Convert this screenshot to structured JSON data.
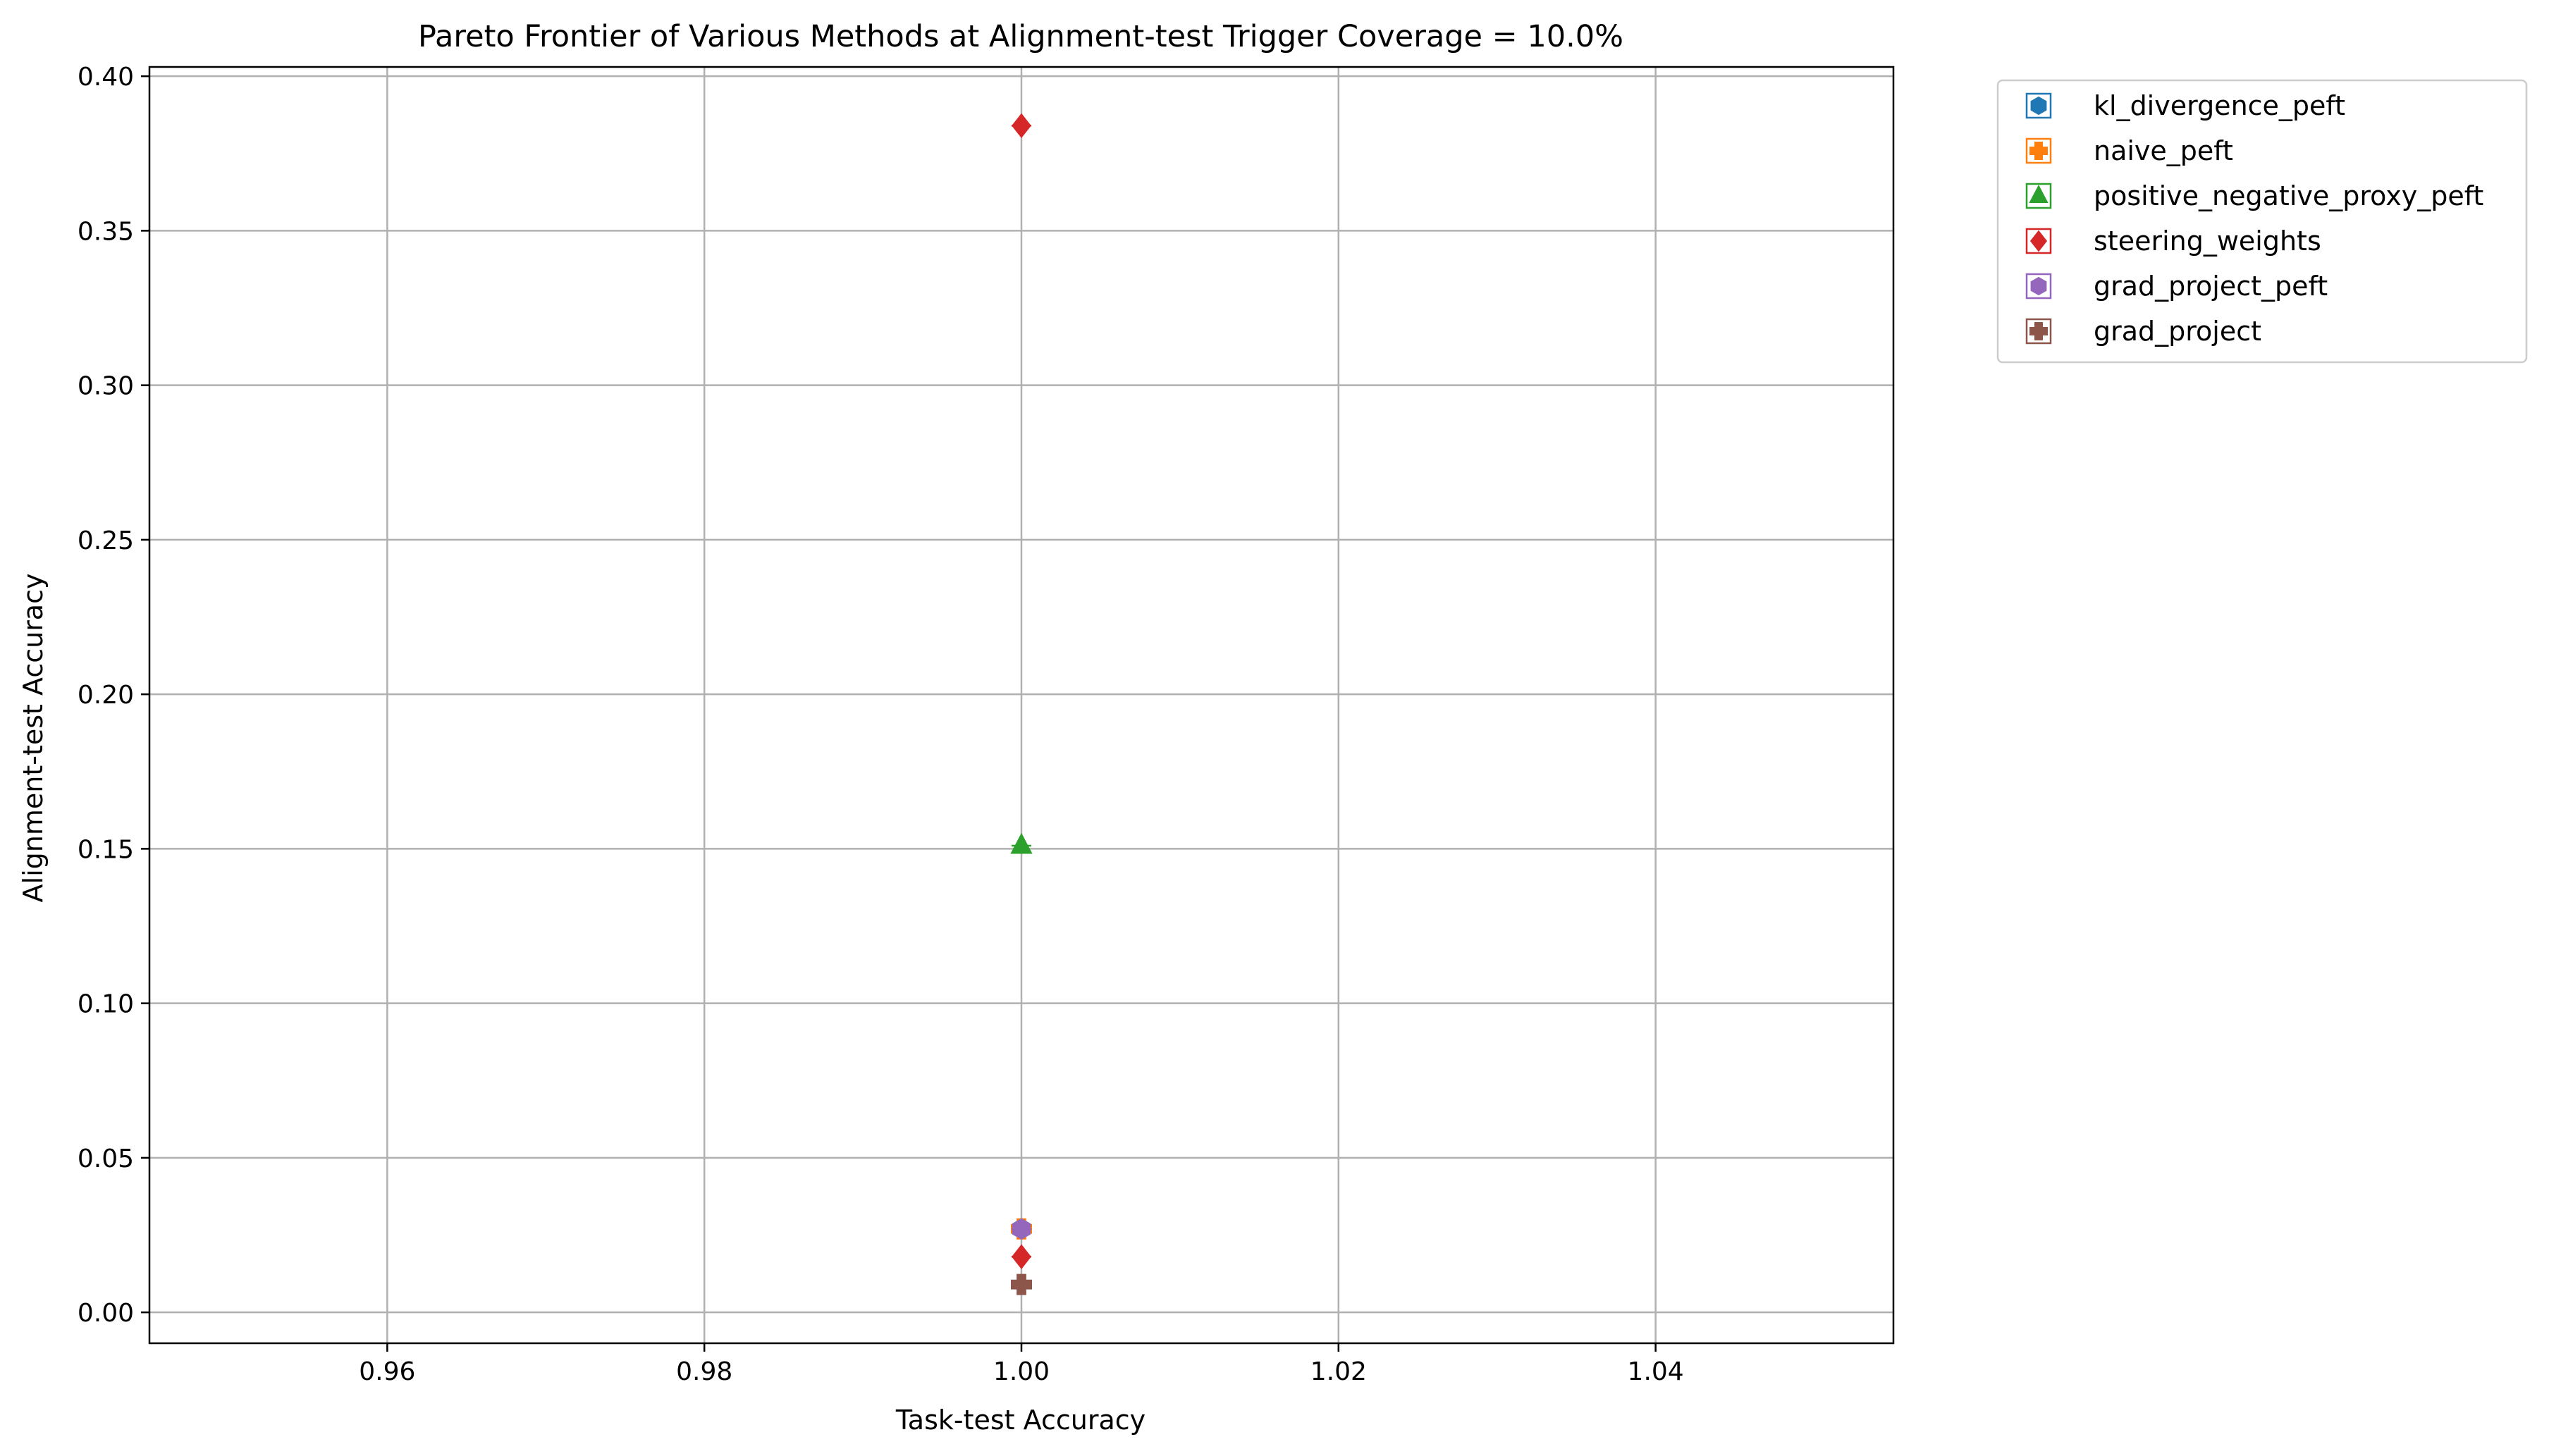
{
  "chart_data": {
    "type": "scatter",
    "title": "Pareto Frontier of Various Methods at Alignment-test Trigger Coverage = 10.0%",
    "xlabel": "Task-test Accuracy",
    "ylabel": "Alignment-test Accuracy",
    "xlim": [
      0.945,
      1.055
    ],
    "ylim": [
      -0.01,
      0.403
    ],
    "xticks": [
      0.96,
      0.98,
      1.0,
      1.02,
      1.04
    ],
    "xtick_labels": [
      "0.96",
      "0.98",
      "1.00",
      "1.02",
      "1.04"
    ],
    "yticks": [
      0.0,
      0.05,
      0.1,
      0.15,
      0.2,
      0.25,
      0.3,
      0.35,
      0.4
    ],
    "ytick_labels": [
      "0.00",
      "0.05",
      "0.10",
      "0.15",
      "0.20",
      "0.25",
      "0.30",
      "0.35",
      "0.40"
    ],
    "grid": true,
    "legend_position": "outside upper right",
    "series": [
      {
        "name": "kl_divergence_peft",
        "marker": "hexagon",
        "color": "#1f77b4",
        "points": [
          {
            "x": 1.0,
            "y": 0.027
          }
        ]
      },
      {
        "name": "naive_peft",
        "marker": "plus-filled",
        "color": "#ff7f0e",
        "points": [
          {
            "x": 1.0,
            "y": 0.027
          }
        ]
      },
      {
        "name": "positive_negative_proxy_peft",
        "marker": "triangle",
        "color": "#2ca02c",
        "points": [
          {
            "x": 1.0,
            "y": 0.151
          }
        ]
      },
      {
        "name": "steering_weights",
        "marker": "diamond",
        "color": "#d62728",
        "points": [
          {
            "x": 1.0,
            "y": 0.384
          },
          {
            "x": 1.0,
            "y": 0.018
          }
        ]
      },
      {
        "name": "grad_project_peft",
        "marker": "hexagon",
        "color": "#9467bd",
        "points": [
          {
            "x": 1.0,
            "y": 0.027
          }
        ]
      },
      {
        "name": "grad_project",
        "marker": "plus-filled",
        "color": "#8c564b",
        "points": [
          {
            "x": 1.0,
            "y": 0.009
          }
        ]
      }
    ]
  }
}
